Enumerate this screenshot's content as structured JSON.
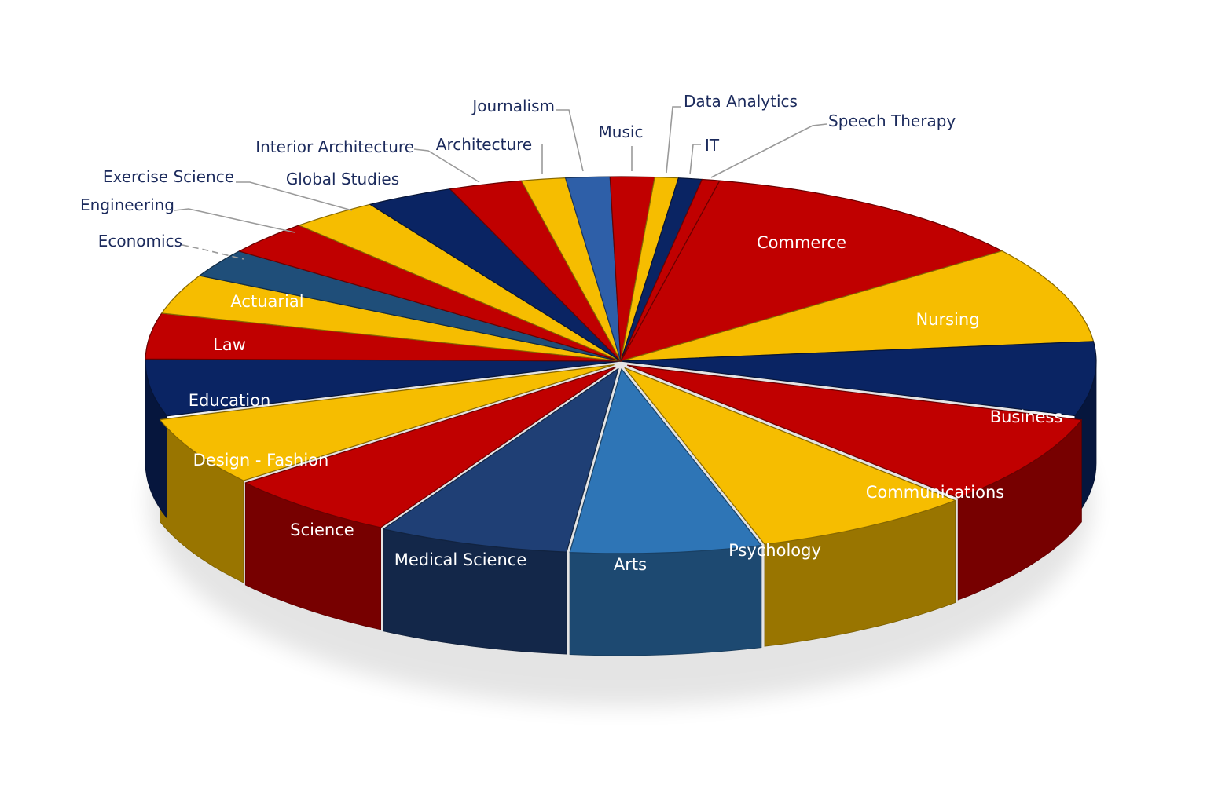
{
  "chart_data": {
    "type": "pie",
    "style": "3d-exploded-tilted",
    "title": "",
    "legend": "none (labels on/around slices)",
    "start_angle_note": "slices ordered clockwise starting from top (Commerce)",
    "categories": [
      "Commerce",
      "Nursing",
      "Business",
      "Communications",
      "Psychology",
      "Arts",
      "Medical Science",
      "Science",
      "Design - Fashion",
      "Education",
      "Law",
      "Actuarial",
      "Economics",
      "Engineering",
      "Exercise Science",
      "Global Studies",
      "Interior Architecture",
      "Architecture",
      "Journalism",
      "Music",
      "Data Analytics",
      "IT",
      "Speech Therapy"
    ],
    "values": [
      11.5,
      8.5,
      6.5,
      8.0,
      7.5,
      6.5,
      6.5,
      6.0,
      6.0,
      5.0,
      4.0,
      3.5,
      2.5,
      3.0,
      3.0,
      3.0,
      2.5,
      1.5,
      1.5,
      1.5,
      0.8,
      0.8,
      0.6
    ],
    "colors": [
      "#c00000",
      "#f6bd00",
      "#0a2463",
      "#c00000",
      "#f6bd00",
      "#2e75b6",
      "#1f3f75",
      "#c00000",
      "#f6bd00",
      "#0a2463",
      "#c00000",
      "#f6bd00",
      "#1f4e79",
      "#c00000",
      "#f6bd00",
      "#0a2463",
      "#c00000",
      "#f6bd00",
      "#2e5fa8",
      "#c00000",
      "#f6bd00",
      "#0a2463",
      "#c00000"
    ],
    "label_placement": {
      "inside": [
        "Commerce",
        "Nursing",
        "Business",
        "Communications",
        "Psychology",
        "Arts",
        "Medical Science",
        "Science",
        "Design - Fashion",
        "Education",
        "Law",
        "Actuarial"
      ],
      "outside": [
        "Economics",
        "Engineering",
        "Exercise Science",
        "Global Studies",
        "Interior Architecture",
        "Architecture",
        "Journalism",
        "Music",
        "Data Analytics",
        "IT",
        "Speech Therapy"
      ]
    },
    "exploded": [
      "Design - Fashion",
      "Science",
      "Medical Science",
      "Arts",
      "Psychology",
      "Communications"
    ]
  },
  "labels": {
    "commerce": "Commerce",
    "nursing": "Nursing",
    "business": "Business",
    "communications": "Communications",
    "psychology": "Psychology",
    "arts": "Arts",
    "medical_science": "Medical Science",
    "science": "Science",
    "design_fashion": "Design - Fashion",
    "education": "Education",
    "law": "Law",
    "actuarial": "Actuarial",
    "economics": "Economics",
    "engineering": "Engineering",
    "exercise_science": "Exercise Science",
    "global_studies": "Global Studies",
    "interior_architecture": "Interior Architecture",
    "architecture": "Architecture",
    "journalism": "Journalism",
    "music": "Music",
    "data_analytics": "Data Analytics",
    "it": "IT",
    "speech_therapy": "Speech Therapy"
  }
}
